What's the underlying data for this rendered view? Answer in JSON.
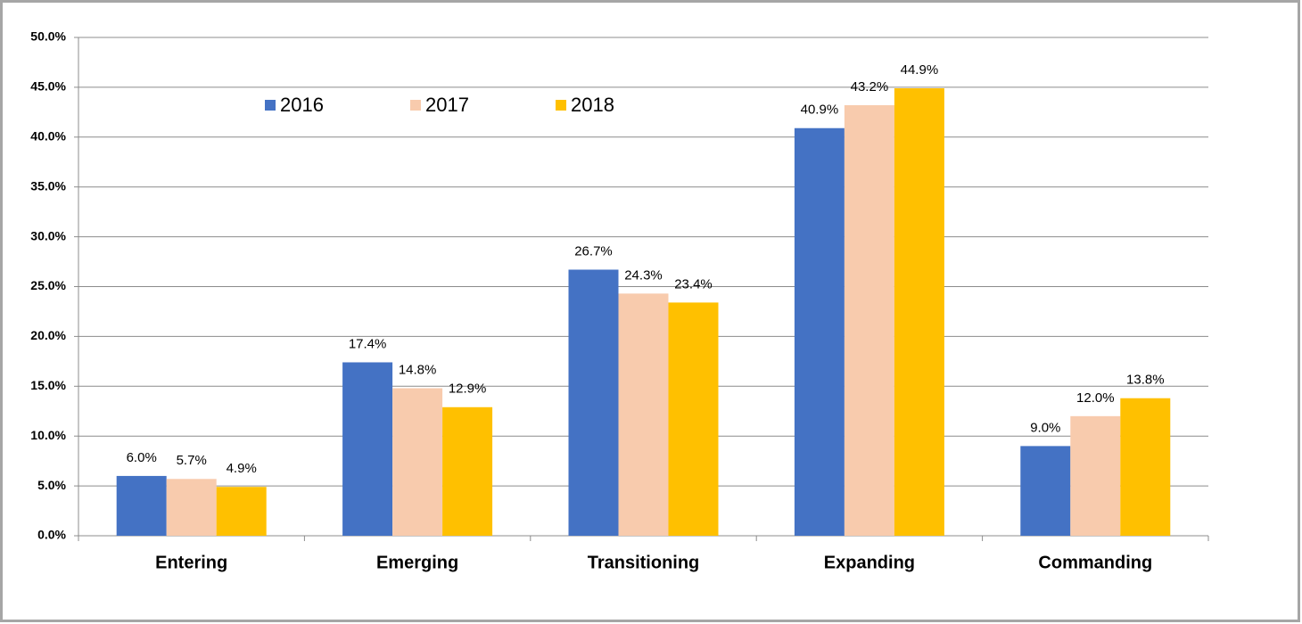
{
  "chart_data": {
    "type": "bar",
    "categories": [
      "Entering",
      "Emerging",
      "Transitioning",
      "Expanding",
      "Commanding"
    ],
    "series": [
      {
        "name": "2016",
        "color": "#4472c4",
        "values": [
          6.0,
          17.4,
          26.7,
          40.9,
          9.0
        ],
        "value_labels": [
          "6.0%",
          "17.4%",
          "26.7%",
          "40.9%",
          "9.0%"
        ]
      },
      {
        "name": "2017",
        "color": "#f8cbad",
        "values": [
          5.7,
          14.8,
          24.3,
          43.2,
          12.0
        ],
        "value_labels": [
          "5.7%",
          "14.8%",
          "24.3%",
          "43.2%",
          "12.0%"
        ]
      },
      {
        "name": "2018",
        "color": "#ffc000",
        "values": [
          4.9,
          12.9,
          23.4,
          44.9,
          13.8
        ],
        "value_labels": [
          "4.9%",
          "12.9%",
          "23.4%",
          "44.9%",
          "13.8%"
        ]
      }
    ],
    "ylim": [
      0,
      50
    ],
    "yticks": [
      {
        "value": 0,
        "label": "0.0%"
      },
      {
        "value": 5,
        "label": "5.0%"
      },
      {
        "value": 10,
        "label": "10.0%"
      },
      {
        "value": 15,
        "label": "15.0%"
      },
      {
        "value": 20,
        "label": "20.0%"
      },
      {
        "value": 25,
        "label": "25.0%"
      },
      {
        "value": 30,
        "label": "30.0%"
      },
      {
        "value": 35,
        "label": "35.0%"
      },
      {
        "value": 40,
        "label": "40.0%"
      },
      {
        "value": 45,
        "label": "45.0%"
      },
      {
        "value": 50,
        "label": "50.0%"
      }
    ],
    "grid": true
  }
}
